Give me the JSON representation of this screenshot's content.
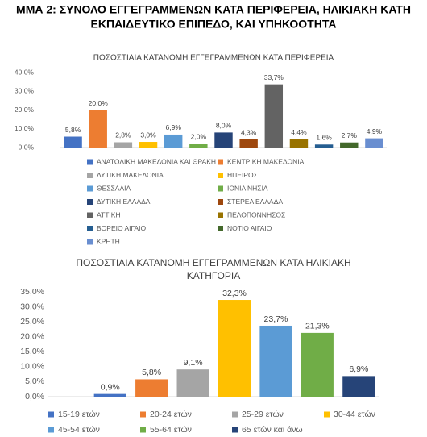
{
  "header": {
    "title_lines": [
      "ΜΜΑ 2: ΣΥΝΟΛΟ ΕΓΓΕΓΡΑΜΜΕΝΩΝ ΚΑΤΑ ΠΕΡΙΦΕΡΕΙΑ, ΗΛΙΚΙΑΚΗ ΚΑΤΗ",
      "ΕΚΠΑΙΔΕΥΤΙΚΟ ΕΠΙΠΕΔΟ, ΚΑΙ ΥΠΗΚΟΟΤΗΤΑ"
    ]
  },
  "chart_data": [
    {
      "type": "bar",
      "title": [
        "ΠΟΣΟΣΤΙΑΙΑ ΚΑΤΑΝΟΜΗ ΕΓΓΕΓΡΑΜΜΕΝΩΝ ΚΑΤΑ ΠΕΡΙΦΕΡΕΙΑ"
      ],
      "categories": [
        "ΑΝΑΤΟΛΙΚΗ ΜΑΚΕΔΟΝΙΑ ΚΑΙ ΘΡΑΚΗ",
        "ΚΕΝΤΡΙΚΗ ΜΑΚΕΔΟΝΙΑ",
        "ΔΥΤΙΚΗ ΜΑΚΕΔΟΝΙΑ",
        "ΗΠΕΙΡΟΣ",
        "ΘΕΣΣΑΛΙΑ",
        "ΙΟΝΙΑ ΝΗΣΙΑ",
        "ΔΥΤΙΚΗ ΕΛΛΑΔΑ",
        "ΣΤΕΡΕΑ ΕΛΛΑΔΑ",
        "ΑΤΤΙΚΗ",
        "ΠΕΛΟΠΟΝΝΗΣΟΣ",
        "ΒΟΡΕΙΟ ΑΙΓΑΙΟ",
        "ΝΟΤΙΟ ΑΙΓΑΙΟ",
        "ΚΡΗΤΗ"
      ],
      "values": [
        5.8,
        20.0,
        2.8,
        3.0,
        6.9,
        2.0,
        8.0,
        4.3,
        33.7,
        4.4,
        1.6,
        2.7,
        4.9
      ],
      "value_labels": [
        "5,8%",
        "20,0%",
        "2,8%",
        "3,0%",
        "6,9%",
        "2,0%",
        "8,0%",
        "4,3%",
        "33,7%",
        "4,4%",
        "1,6%",
        "2,7%",
        "4,9%"
      ],
      "colors": [
        "#4472c4",
        "#ed7d31",
        "#a5a5a5",
        "#ffc000",
        "#5b9bd5",
        "#70ad47",
        "#264478",
        "#9e480e",
        "#636363",
        "#997300",
        "#255e91",
        "#43682b",
        "#698ed0"
      ],
      "ylim": [
        0,
        40
      ],
      "yticks": [
        {
          "value": 0,
          "label": "0,0%"
        },
        {
          "value": 10,
          "label": "10,0%"
        },
        {
          "value": 20,
          "label": "20,0%"
        },
        {
          "value": 30,
          "label": "30,0%"
        },
        {
          "value": 40,
          "label": "40,0%"
        }
      ],
      "grid": false
    },
    {
      "type": "bar",
      "title": [
        "ΠΟΣΟΣΤΙΑΙΑ ΚΑΤΑΝΟΜΗ ΕΓΓΕΓΡΑΜΜΕΝΩΝ  ΚΑΤΑ ΗΛΙΚΙΑΚΗ",
        "ΚΑΤΗΓΟΡΙΑ"
      ],
      "categories": [
        "15-19 ετών",
        "20-24 ετών",
        "25-29 ετών",
        "30-44 ετών",
        "45-54 ετών",
        "55-64 ετών",
        "65 ετών και άνω"
      ],
      "values": [
        0.9,
        5.8,
        9.1,
        32.3,
        23.7,
        21.3,
        6.9
      ],
      "value_labels": [
        "0,9%",
        "5,8%",
        "9,1%",
        "32,3%",
        "23,7%",
        "21,3%",
        "6,9%"
      ],
      "colors": [
        "#4472c4",
        "#ed7d31",
        "#a5a5a5",
        "#ffc000",
        "#5b9bd5",
        "#70ad47",
        "#264478"
      ],
      "ylim": [
        0,
        35
      ],
      "yticks": [
        {
          "value": 0,
          "label": "0,0%"
        },
        {
          "value": 5,
          "label": "5,0%"
        },
        {
          "value": 10,
          "label": "10,0%"
        },
        {
          "value": 15,
          "label": "15,0%"
        },
        {
          "value": 20,
          "label": "20,0%"
        },
        {
          "value": 25,
          "label": "25,0%"
        },
        {
          "value": 30,
          "label": "30,0%"
        },
        {
          "value": 35,
          "label": "35,0%"
        }
      ],
      "grid": false
    }
  ]
}
